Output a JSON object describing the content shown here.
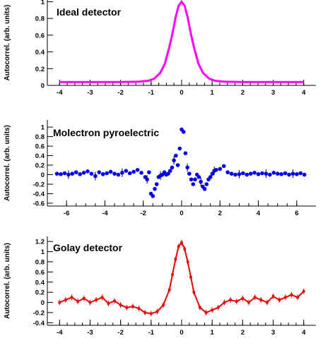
{
  "chart_data": [
    {
      "type": "line",
      "title": "Ideal detector",
      "ylabel": "Autocorrel. (arb. units)",
      "xlabel": "",
      "xlim": [
        -4.4,
        4.4
      ],
      "ylim": [
        0,
        1.02
      ],
      "xticks": [
        -4,
        -3,
        -2,
        -1,
        0,
        1,
        2,
        3,
        4
      ],
      "yticks": [
        0,
        0.2,
        0.4,
        0.6,
        0.8,
        1
      ],
      "series": [
        {
          "color": "#ff00ff",
          "style": "line",
          "x": [
            -4,
            -3,
            -2,
            -1.4,
            -1.1,
            -0.9,
            -0.7,
            -0.55,
            -0.4,
            -0.3,
            -0.2,
            -0.1,
            0,
            0.1,
            0.2,
            0.3,
            0.4,
            0.55,
            0.7,
            0.9,
            1.1,
            1.4,
            2,
            3,
            4
          ],
          "y": [
            0.04,
            0.04,
            0.04,
            0.045,
            0.055,
            0.08,
            0.15,
            0.26,
            0.46,
            0.62,
            0.81,
            0.95,
            1.0,
            0.95,
            0.81,
            0.62,
            0.46,
            0.26,
            0.15,
            0.08,
            0.055,
            0.045,
            0.04,
            0.04,
            0.04
          ]
        }
      ]
    },
    {
      "type": "scatter",
      "title": "Molectron pyroelectric",
      "ylabel": "Autocorrel. (arb. units)",
      "xlabel": "",
      "xlim": [
        -7,
        7
      ],
      "ylim": [
        -0.66,
        1.15
      ],
      "xticks": [
        -6,
        -4,
        -2,
        0,
        2,
        4,
        6
      ],
      "yticks": [
        -0.6,
        -0.4,
        -0.2,
        0,
        0.2,
        0.4,
        0.6,
        0.8,
        1
      ],
      "series": [
        {
          "color": "#0000ee",
          "style": "scatter",
          "x": [
            -6.5,
            -6.3,
            -6.1,
            -5.9,
            -5.7,
            -5.5,
            -5.3,
            -5.1,
            -4.9,
            -4.7,
            -4.5,
            -4.3,
            -4.1,
            -3.9,
            -3.7,
            -3.5,
            -3.3,
            -3.1,
            -2.9,
            -2.7,
            -2.5,
            -2.3,
            -2.1,
            -1.9,
            -1.8,
            -1.7,
            -1.6,
            -1.5,
            -1.4,
            -1.3,
            -1.2,
            -1.1,
            -1.0,
            -0.9,
            -0.8,
            -0.7,
            -0.6,
            -0.5,
            -0.4,
            -0.3,
            -0.2,
            -0.1,
            0.0,
            0.1,
            0.2,
            0.3,
            0.4,
            0.5,
            0.6,
            0.7,
            0.8,
            0.9,
            1.0,
            1.1,
            1.2,
            1.3,
            1.4,
            1.5,
            1.6,
            1.7,
            1.8,
            2.0,
            2.2,
            2.4,
            2.6,
            2.8,
            3.0,
            3.2,
            3.4,
            3.6,
            3.8,
            4.0,
            4.2,
            4.4,
            4.6,
            4.8,
            5.0,
            5.2,
            5.4,
            5.6,
            5.8,
            6.0,
            6.2,
            6.4
          ],
          "y": [
            0.02,
            0.01,
            0.03,
            0.0,
            0.02,
            0.05,
            0.01,
            0.04,
            0.07,
            0.02,
            -0.03,
            0.05,
            0.01,
            0.03,
            0.06,
            0.02,
            0.0,
            0.04,
            0.08,
            0.03,
            0.06,
            0.1,
            0.04,
            -0.05,
            -0.1,
            0.05,
            -0.4,
            -0.45,
            -0.3,
            -0.2,
            -0.05,
            -0.02,
            0.0,
            0.05,
            0.0,
            0.02,
            0.08,
            0.15,
            0.3,
            0.4,
            0.2,
            0.55,
            0.95,
            0.9,
            0.45,
            0.15,
            0.02,
            -0.1,
            -0.2,
            -0.1,
            0.0,
            -0.05,
            -0.15,
            -0.25,
            -0.3,
            -0.2,
            -0.1,
            -0.05,
            0.02,
            0.08,
            0.1,
            0.12,
            0.18,
            0.05,
            0.02,
            0.0,
            0.01,
            0.03,
            0.0,
            0.02,
            0.04,
            0.01,
            0.03,
            0.02,
            0.0,
            0.04,
            0.02,
            0.01,
            0.03,
            0.0,
            0.02,
            0.01,
            0.03,
            0.0
          ]
        }
      ]
    },
    {
      "type": "line",
      "title": "Golay detector",
      "ylabel": "Autocorrel. (arb. units)",
      "xlabel": "",
      "xlim": [
        -4.4,
        4.4
      ],
      "ylim": [
        -0.45,
        1.3
      ],
      "xticks": [
        -4,
        -3,
        -2,
        -1,
        0,
        1,
        2,
        3,
        4
      ],
      "yticks": [
        -0.4,
        -0.2,
        0,
        0.2,
        0.4,
        0.6,
        0.8,
        1,
        1.2
      ],
      "series": [
        {
          "color": "#ee0000",
          "style": "line-markers",
          "x": [
            -4.0,
            -3.8,
            -3.6,
            -3.4,
            -3.2,
            -3.0,
            -2.8,
            -2.6,
            -2.4,
            -2.2,
            -2.0,
            -1.8,
            -1.6,
            -1.4,
            -1.2,
            -1.0,
            -0.8,
            -0.6,
            -0.4,
            -0.3,
            -0.2,
            -0.1,
            0.0,
            0.1,
            0.2,
            0.3,
            0.4,
            0.6,
            0.8,
            1.0,
            1.2,
            1.4,
            1.6,
            1.8,
            2.0,
            2.2,
            2.4,
            2.6,
            2.8,
            3.0,
            3.2,
            3.4,
            3.6,
            3.8,
            4.0
          ],
          "y": [
            0.0,
            0.05,
            0.1,
            0.02,
            0.08,
            0.0,
            0.05,
            0.1,
            -0.02,
            0.03,
            -0.05,
            -0.1,
            -0.08,
            -0.12,
            -0.2,
            -0.22,
            -0.18,
            -0.05,
            0.25,
            0.55,
            0.85,
            1.1,
            1.18,
            1.05,
            0.8,
            0.5,
            0.2,
            -0.1,
            -0.2,
            -0.15,
            -0.1,
            0.0,
            0.05,
            0.02,
            0.08,
            0.0,
            0.1,
            0.05,
            0.0,
            0.12,
            0.05,
            0.1,
            0.15,
            0.1,
            0.22
          ]
        }
      ]
    }
  ]
}
